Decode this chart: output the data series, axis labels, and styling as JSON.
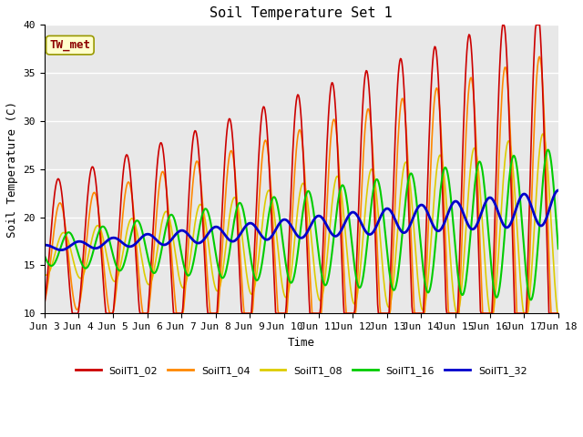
{
  "title": "Soil Temperature Set 1",
  "xlabel": "Time",
  "ylabel": "Soil Temperature (C)",
  "ylim": [
    10,
    40
  ],
  "annotation": "TW_met",
  "plot_bg_color": "#e8e8e8",
  "fig_bg_color": "#ffffff",
  "series_colors": {
    "SoilT1_02": "#cc0000",
    "SoilT1_04": "#ff8800",
    "SoilT1_08": "#ddcc00",
    "SoilT1_16": "#00cc00",
    "SoilT1_32": "#0000cc"
  },
  "series_lw": {
    "SoilT1_02": 1.2,
    "SoilT1_04": 1.2,
    "SoilT1_08": 1.2,
    "SoilT1_16": 1.5,
    "SoilT1_32": 2.0
  },
  "xtick_labels": [
    "Jun 3",
    "Jun 4",
    "Jun 5",
    "Jun 6",
    "Jun 7",
    "Jun 8",
    "Jun 9",
    "Jun 10",
    "Jun 11",
    "Jun 12",
    "Jun 13",
    "Jun 14",
    "Jun 15",
    "Jun 16",
    "Jun 17",
    "Jun 18"
  ],
  "yticks": [
    10,
    15,
    20,
    25,
    30,
    35,
    40
  ],
  "font": "monospace",
  "title_fontsize": 11,
  "label_fontsize": 9,
  "tick_fontsize": 8,
  "legend_fontsize": 8
}
